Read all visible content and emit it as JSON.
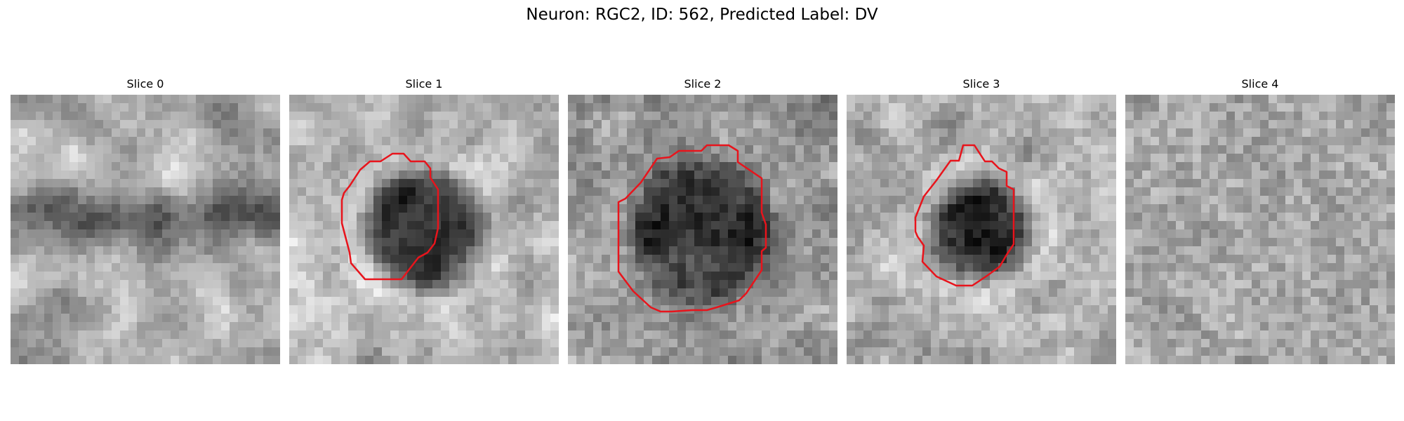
{
  "figure": {
    "title": "Neuron: RGC2, ID: 562, Predicted Label: DV"
  },
  "slices": [
    {
      "title": "Slice 0",
      "has_contour": false
    },
    {
      "title": "Slice 1",
      "has_contour": true
    },
    {
      "title": "Slice 2",
      "has_contour": true
    },
    {
      "title": "Slice 3",
      "has_contour": true
    },
    {
      "title": "Slice 4",
      "has_contour": false
    }
  ],
  "colors": {
    "contour": "#e8141c",
    "background": "#ffffff"
  },
  "colormap": "gray"
}
